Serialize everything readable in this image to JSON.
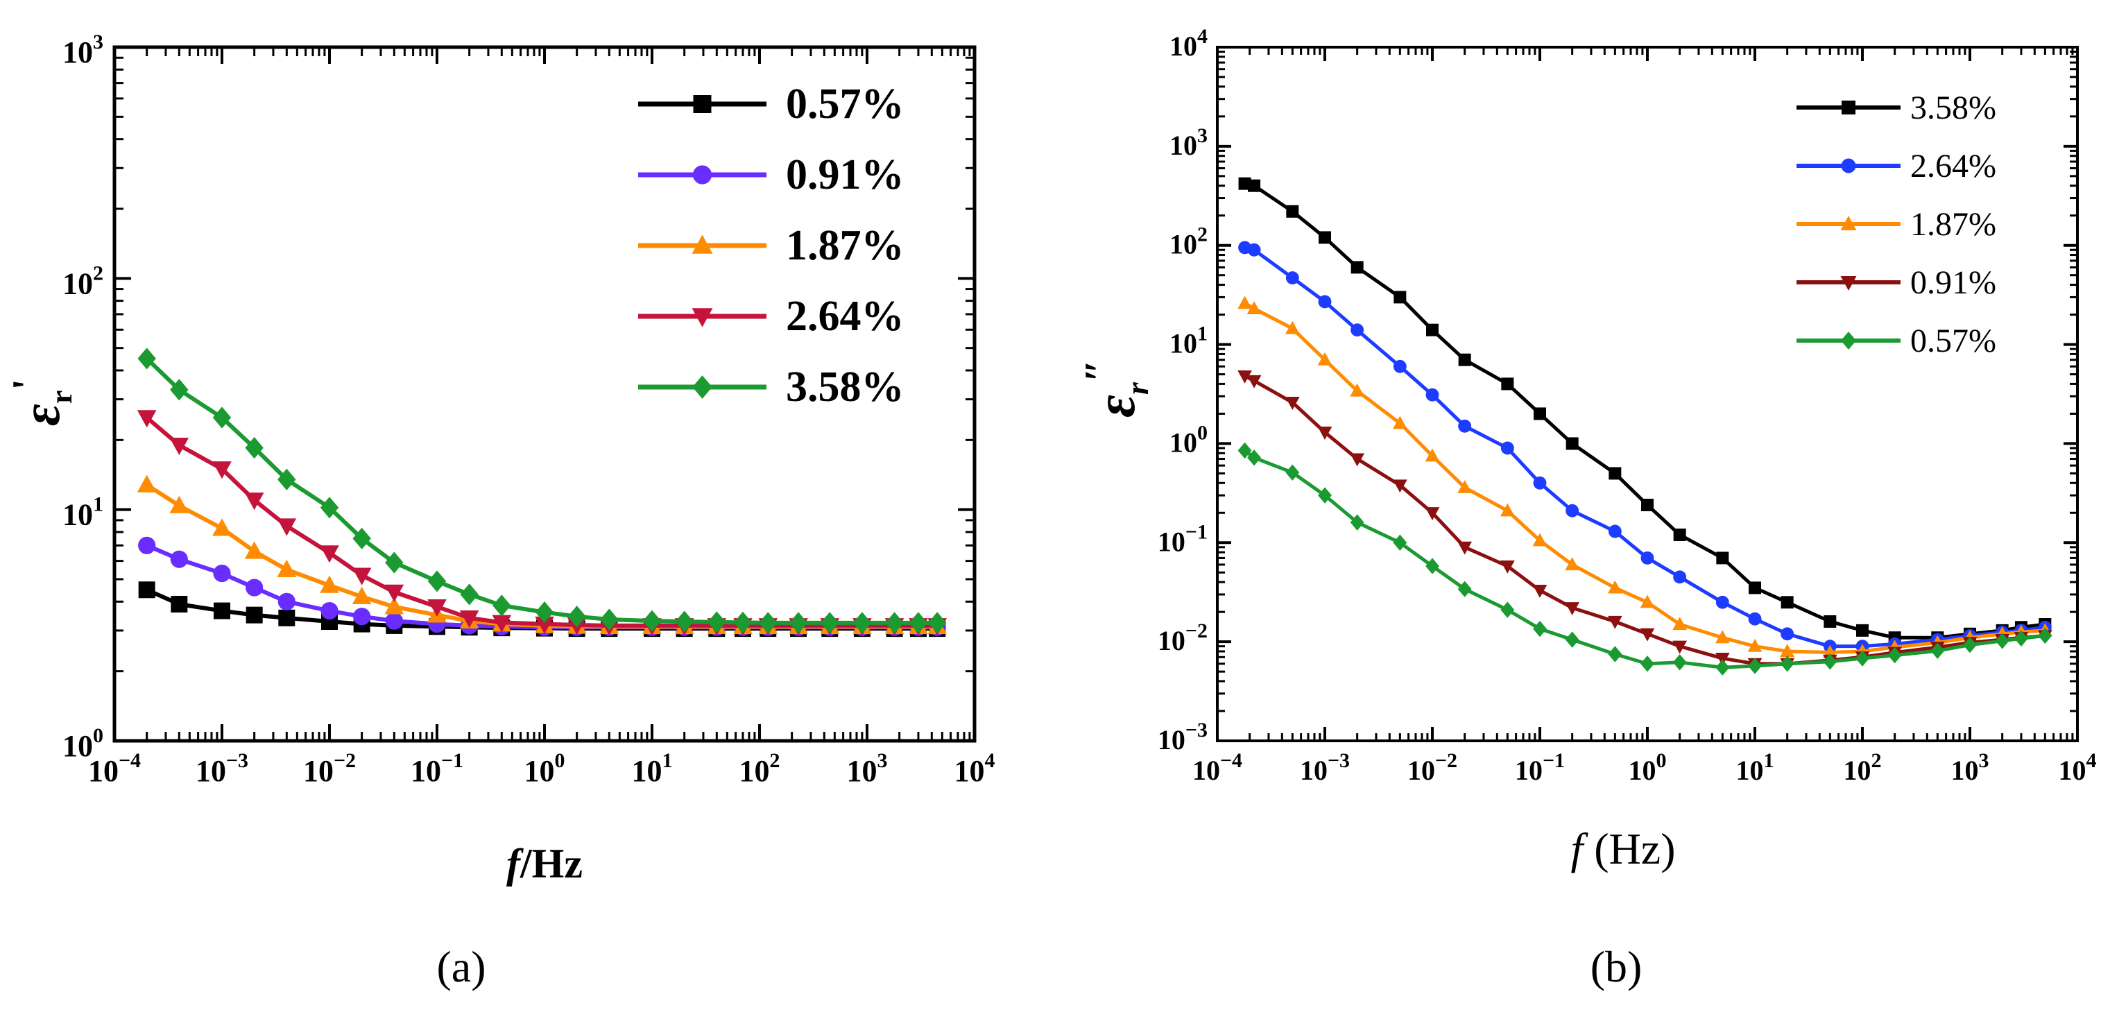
{
  "figure": {
    "panel_a_label": "(a)",
    "panel_b_label": "(b)"
  },
  "chart_data": [
    {
      "type": "line",
      "panel": "(a)",
      "title": "",
      "xlabel": "f/Hz",
      "xlabel_italic": "f",
      "xlabel_rest": "/Hz",
      "ylabel": "εr'",
      "ylabel_main": "ε",
      "ylabel_sub": "r",
      "ylabel_mark": "'",
      "xscale": "log",
      "yscale": "log",
      "xlim": [
        0.0001,
        10000
      ],
      "ylim": [
        1,
        1000
      ],
      "x_ticks": [
        "10-4",
        "10-3",
        "10-2",
        "10-1",
        "100",
        "101",
        "102",
        "103",
        "104"
      ],
      "x_tick_parts": [
        [
          "10",
          "−4"
        ],
        [
          "10",
          "−3"
        ],
        [
          "10",
          "−2"
        ],
        [
          "10",
          "−1"
        ],
        [
          "10",
          "0"
        ],
        [
          "10",
          "1"
        ],
        [
          "10",
          "2"
        ],
        [
          "10",
          "3"
        ],
        [
          "10",
          "4"
        ]
      ],
      "y_tick_parts": [
        [
          "10",
          "0"
        ],
        [
          "10",
          "1"
        ],
        [
          "10",
          "2"
        ],
        [
          "10",
          "3"
        ]
      ],
      "legend_position": "top-right",
      "x": [
        0.0002,
        0.0004,
        0.001,
        0.002,
        0.004,
        0.01,
        0.02,
        0.04,
        0.1,
        0.2,
        0.4,
        1,
        2,
        4,
        10,
        20,
        40,
        70,
        120,
        230,
        450,
        900,
        1800,
        3000,
        4500
      ],
      "series": [
        {
          "name": "0.57%",
          "color": "#000000",
          "marker": "square",
          "values": [
            4.5,
            3.9,
            3.65,
            3.5,
            3.4,
            3.28,
            3.2,
            3.15,
            3.12,
            3.1,
            3.08,
            3.07,
            3.06,
            3.06,
            3.06,
            3.06,
            3.06,
            3.06,
            3.06,
            3.06,
            3.06,
            3.06,
            3.06,
            3.06,
            3.06
          ]
        },
        {
          "name": "0.91%",
          "color": "#6a2dff",
          "marker": "circle",
          "values": [
            7.0,
            6.1,
            5.3,
            4.6,
            4.0,
            3.65,
            3.45,
            3.3,
            3.2,
            3.15,
            3.12,
            3.1,
            3.1,
            3.1,
            3.1,
            3.1,
            3.1,
            3.1,
            3.1,
            3.1,
            3.1,
            3.1,
            3.1,
            3.1,
            3.1
          ]
        },
        {
          "name": "1.87%",
          "color": "#ff8c00",
          "marker": "triangle-up",
          "values": [
            12.8,
            10.4,
            8.3,
            6.6,
            5.5,
            4.7,
            4.2,
            3.8,
            3.5,
            3.3,
            3.2,
            3.15,
            3.13,
            3.12,
            3.12,
            3.12,
            3.12,
            3.12,
            3.12,
            3.12,
            3.12,
            3.12,
            3.12,
            3.12,
            3.12
          ]
        },
        {
          "name": "2.64%",
          "color": "#c4143c",
          "marker": "triangle-down",
          "values": [
            25,
            19,
            15,
            11,
            8.5,
            6.5,
            5.2,
            4.4,
            3.8,
            3.4,
            3.25,
            3.2,
            3.17,
            3.15,
            3.15,
            3.15,
            3.15,
            3.15,
            3.15,
            3.15,
            3.15,
            3.15,
            3.15,
            3.15,
            3.15
          ]
        },
        {
          "name": "3.58%",
          "color": "#1a9a30",
          "marker": "diamond",
          "values": [
            45,
            33,
            25,
            18.5,
            13.5,
            10.2,
            7.5,
            5.9,
            4.9,
            4.3,
            3.85,
            3.6,
            3.45,
            3.35,
            3.3,
            3.28,
            3.26,
            3.25,
            3.24,
            3.24,
            3.24,
            3.24,
            3.24,
            3.24,
            3.24
          ]
        }
      ]
    },
    {
      "type": "line",
      "panel": "(b)",
      "title": "",
      "xlabel": "f (Hz)",
      "xlabel_italic": "f",
      "xlabel_rest": " (Hz)",
      "ylabel": "εr\"",
      "ylabel_main": "ε",
      "ylabel_sub": "r",
      "ylabel_mark": "″",
      "xscale": "log",
      "yscale": "log",
      "xlim": [
        0.0001,
        10000
      ],
      "ylim": [
        0.001,
        10000
      ],
      "x_tick_parts": [
        [
          "10",
          "−4"
        ],
        [
          "10",
          "−3"
        ],
        [
          "10",
          "−2"
        ],
        [
          "10",
          "−1"
        ],
        [
          "10",
          "0"
        ],
        [
          "10",
          "1"
        ],
        [
          "10",
          "2"
        ],
        [
          "10",
          "3"
        ],
        [
          "10",
          "4"
        ]
      ],
      "y_tick_parts": [
        [
          "10",
          "−3"
        ],
        [
          "10",
          "−2"
        ],
        [
          "10",
          "−1"
        ],
        [
          "10",
          "0"
        ],
        [
          "10",
          "1"
        ],
        [
          "10",
          "2"
        ],
        [
          "10",
          "3"
        ],
        [
          "10",
          "4"
        ]
      ],
      "legend_position": "top-right",
      "x": [
        0.00018,
        0.00022,
        0.0005,
        0.001,
        0.002,
        0.005,
        0.01,
        0.02,
        0.05,
        0.1,
        0.2,
        0.5,
        1,
        2,
        5,
        10,
        20,
        50,
        100,
        200,
        500,
        1000,
        2000,
        3000,
        5000
      ],
      "series": [
        {
          "name": "3.58%",
          "color": "#000000",
          "marker": "square",
          "values": [
            420,
            400,
            220,
            120,
            60,
            30,
            14,
            7,
            4,
            2.0,
            1.0,
            0.5,
            0.24,
            0.12,
            0.07,
            0.035,
            0.025,
            0.016,
            0.013,
            0.011,
            0.011,
            0.012,
            0.013,
            0.014,
            0.015
          ]
        },
        {
          "name": "2.64%",
          "color": "#1e3cff",
          "marker": "circle",
          "values": [
            95,
            90,
            47,
            27,
            14,
            6.0,
            3.1,
            1.5,
            0.9,
            0.4,
            0.21,
            0.13,
            0.07,
            0.045,
            0.025,
            0.017,
            0.012,
            0.009,
            0.009,
            0.0095,
            0.0105,
            0.0115,
            0.0125,
            0.013,
            0.014
          ]
        },
        {
          "name": "1.87%",
          "color": "#ff8c00",
          "marker": "triangle-up",
          "values": [
            26,
            23,
            14.5,
            7.0,
            3.4,
            1.6,
            0.75,
            0.36,
            0.21,
            0.105,
            0.06,
            0.035,
            0.025,
            0.015,
            0.011,
            0.009,
            0.008,
            0.0078,
            0.008,
            0.0088,
            0.0098,
            0.011,
            0.012,
            0.0125,
            0.013
          ]
        },
        {
          "name": "0.91%",
          "color": "#8b1010",
          "marker": "triangle-down",
          "values": [
            4.8,
            4.3,
            2.6,
            1.3,
            0.7,
            0.38,
            0.2,
            0.09,
            0.058,
            0.033,
            0.022,
            0.016,
            0.012,
            0.009,
            0.0068,
            0.006,
            0.006,
            0.0065,
            0.007,
            0.0078,
            0.0088,
            0.0098,
            0.0105,
            0.011,
            0.0115
          ]
        },
        {
          "name": "0.57%",
          "color": "#1a9a30",
          "marker": "diamond",
          "values": [
            0.85,
            0.72,
            0.51,
            0.3,
            0.16,
            0.1,
            0.058,
            0.034,
            0.021,
            0.0135,
            0.0105,
            0.0075,
            0.006,
            0.0062,
            0.0055,
            0.0057,
            0.006,
            0.0063,
            0.0068,
            0.0073,
            0.0081,
            0.0093,
            0.0102,
            0.0108,
            0.0115
          ]
        }
      ]
    }
  ]
}
